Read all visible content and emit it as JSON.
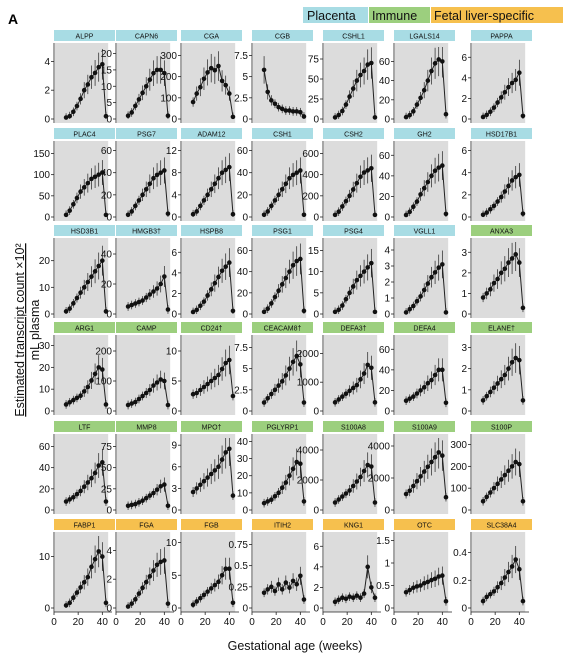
{
  "panel_label": "A",
  "legend": [
    {
      "label": "Placenta",
      "color": "#a8dce4"
    },
    {
      "label": "Immune",
      "color": "#9ccf7e"
    },
    {
      "label": "Fetal liver-specific",
      "color": "#f6c04e"
    }
  ],
  "ylabel_line1": "Estimated transcript count ×10²",
  "ylabel_line2": "mL plasma",
  "xlabel": "Gestational age (weeks)",
  "x_ticks": [
    "0",
    "20",
    "40"
  ],
  "chart_data": {
    "type": "line",
    "title": "",
    "xlabel": "Gestational age (weeks)",
    "ylabel": "Estimated transcript count ×10² / mL plasma",
    "x_weeks": [
      10,
      13,
      16,
      19,
      22,
      25,
      28,
      31,
      34,
      37,
      40,
      43
    ],
    "x_range": [
      0,
      48
    ],
    "shaded_region_weeks": [
      0,
      44
    ],
    "gene_groups": {
      "Placenta": "#a8dce4",
      "Immune": "#9ccf7e",
      "Fetal liver-specific": "#f6c04e"
    },
    "panels": [
      {
        "gene": "ALPP",
        "group": "Placenta",
        "yticks": [
          0,
          2,
          4
        ],
        "ymax": 5,
        "values": [
          0.1,
          0.2,
          0.5,
          0.9,
          1.4,
          2.0,
          2.4,
          2.9,
          3.2,
          3.6,
          3.8,
          0.2
        ]
      },
      {
        "gene": "CAPN6",
        "group": "Placenta",
        "yticks": [
          0,
          5,
          10,
          15,
          20
        ],
        "ymax": 22,
        "values": [
          1,
          2,
          4,
          6,
          8,
          10,
          12,
          14,
          15,
          15,
          14,
          1
        ]
      },
      {
        "gene": "CGA",
        "group": "Placenta",
        "yticks": [
          0,
          100,
          200,
          300
        ],
        "ymax": 340,
        "values": [
          80,
          120,
          150,
          190,
          220,
          240,
          230,
          250,
          180,
          160,
          120,
          10
        ]
      },
      {
        "gene": "CGB",
        "group": "Placenta",
        "yticks": [
          0,
          2.5,
          5,
          7.5
        ],
        "ymax": 8.5,
        "values": [
          5.8,
          3.2,
          2.2,
          1.8,
          1.4,
          1.2,
          1.0,
          1.0,
          0.9,
          0.9,
          0.8,
          0.3
        ]
      },
      {
        "gene": "CSHL1",
        "group": "Placenta",
        "yticks": [
          0,
          25,
          50,
          75
        ],
        "ymax": 90,
        "values": [
          2,
          5,
          10,
          18,
          28,
          38,
          48,
          55,
          60,
          68,
          70,
          2
        ]
      },
      {
        "gene": "LGALS14",
        "group": "Placenta",
        "yticks": [
          0,
          20,
          40,
          60
        ],
        "ymax": 75,
        "values": [
          2,
          4,
          8,
          15,
          22,
          30,
          40,
          50,
          58,
          62,
          60,
          5
        ]
      },
      {
        "gene": "PAPPA",
        "group": "Placenta",
        "yticks": [
          0,
          2,
          4,
          6
        ],
        "ymax": 7,
        "values": [
          0.2,
          0.4,
          0.7,
          1.1,
          1.6,
          2.1,
          2.6,
          3.1,
          3.5,
          3.8,
          4.5,
          0.3
        ]
      },
      {
        "gene": "PLAC4",
        "group": "Placenta",
        "yticks": [
          0,
          50,
          100,
          150
        ],
        "ymax": 170,
        "values": [
          5,
          15,
          30,
          45,
          60,
          70,
          80,
          90,
          95,
          100,
          105,
          5
        ]
      },
      {
        "gene": "PSG7",
        "group": "Placenta",
        "yticks": [
          0,
          20,
          40,
          60
        ],
        "ymax": 65,
        "values": [
          2,
          5,
          10,
          15,
          20,
          25,
          30,
          35,
          38,
          40,
          42,
          3
        ]
      },
      {
        "gene": "ADAM12",
        "group": "Placenta",
        "yticks": [
          0,
          4,
          8,
          12
        ],
        "ymax": 13,
        "values": [
          0.5,
          1,
          2,
          3,
          4,
          5,
          6,
          7,
          8,
          8.5,
          9,
          0.5
        ]
      },
      {
        "gene": "CSH1",
        "group": "Placenta",
        "yticks": [
          0,
          20,
          40,
          60
        ],
        "ymax": 65,
        "values": [
          2,
          5,
          10,
          15,
          20,
          25,
          30,
          35,
          38,
          40,
          42,
          2
        ]
      },
      {
        "gene": "CSH2",
        "group": "Placenta",
        "yticks": [
          0,
          200,
          400,
          600
        ],
        "ymax": 680,
        "values": [
          20,
          50,
          100,
          150,
          200,
          260,
          320,
          380,
          420,
          440,
          460,
          20
        ]
      },
      {
        "gene": "GH2",
        "group": "Placenta",
        "yticks": [
          0,
          20,
          40,
          60
        ],
        "ymax": 70,
        "values": [
          2,
          5,
          10,
          15,
          22,
          28,
          34,
          40,
          45,
          48,
          50,
          3
        ]
      },
      {
        "gene": "HSD17B1",
        "group": "Placenta",
        "yticks": [
          0,
          2,
          4,
          6
        ],
        "ymax": 6.5,
        "values": [
          0.2,
          0.4,
          0.7,
          1.0,
          1.4,
          1.8,
          2.3,
          2.8,
          3.3,
          3.6,
          3.8,
          0.3
        ]
      },
      {
        "gene": "HSD3B1",
        "group": "Placenta",
        "yticks": [
          0,
          10,
          20
        ],
        "ymax": 27,
        "values": [
          1,
          2,
          4,
          6,
          8,
          10,
          12,
          14,
          16,
          18,
          20,
          1
        ]
      },
      {
        "gene": "HMGB3†",
        "group": "Placenta",
        "yticks": [
          0,
          20,
          40
        ],
        "ymax": 48,
        "values": [
          5,
          6,
          7,
          8,
          9,
          11,
          13,
          15,
          17,
          20,
          25,
          3
        ]
      },
      {
        "gene": "HSPB8",
        "group": "Placenta",
        "yticks": [
          0,
          2,
          4,
          6
        ],
        "ymax": 7,
        "values": [
          0.2,
          0.4,
          0.8,
          1.2,
          1.8,
          2.4,
          3.0,
          3.6,
          4.2,
          4.6,
          5.0,
          0.3
        ]
      },
      {
        "gene": "PSG1",
        "group": "Placenta",
        "yticks": [
          0,
          20,
          40,
          60
        ],
        "ymax": 68,
        "values": [
          2,
          5,
          10,
          16,
          22,
          28,
          34,
          40,
          46,
          50,
          52,
          3
        ]
      },
      {
        "gene": "PSG4",
        "group": "Placenta",
        "yticks": [
          0,
          5,
          10,
          15
        ],
        "ymax": 17,
        "values": [
          0.5,
          1,
          2,
          3.5,
          5,
          6.5,
          8,
          9,
          10,
          11,
          12,
          0.5
        ]
      },
      {
        "gene": "VGLL1",
        "group": "Placenta",
        "yticks": [
          0,
          1,
          2,
          3,
          4
        ],
        "ymax": 4.5,
        "values": [
          0.1,
          0.3,
          0.5,
          0.8,
          1.1,
          1.5,
          1.9,
          2.3,
          2.6,
          2.9,
          3.1,
          0.1
        ]
      },
      {
        "gene": "ANXA3",
        "group": "Immune",
        "yticks": [
          0,
          1,
          2,
          3
        ],
        "ymax": 3.5,
        "values": [
          0.8,
          1.0,
          1.2,
          1.5,
          1.7,
          2.0,
          2.2,
          2.5,
          2.7,
          2.9,
          2.5,
          0.3
        ]
      },
      {
        "gene": "ARG1",
        "group": "Immune",
        "yticks": [
          0,
          10,
          20,
          30
        ],
        "ymax": 33,
        "values": [
          3,
          4,
          5,
          6,
          7,
          9,
          11,
          14,
          17,
          20,
          19,
          3
        ]
      },
      {
        "gene": "CAMP",
        "group": "Immune",
        "yticks": [
          0,
          100,
          200
        ],
        "ymax": 240,
        "values": [
          20,
          25,
          30,
          40,
          50,
          60,
          70,
          85,
          95,
          105,
          100,
          20
        ]
      },
      {
        "gene": "CD24†",
        "group": "Immune",
        "yticks": [
          0,
          5,
          10
        ],
        "ymax": 12,
        "values": [
          2.8,
          3.0,
          3.5,
          4.0,
          4.5,
          5.0,
          5.5,
          6.0,
          7.0,
          8.0,
          8.5,
          2.5
        ]
      },
      {
        "gene": "CEACAM8†",
        "group": "Immune",
        "yticks": [
          0,
          2.5,
          5,
          7.5
        ],
        "ymax": 8.5,
        "values": [
          1.0,
          1.5,
          2.0,
          2.5,
          3.0,
          3.5,
          4.2,
          5.0,
          5.8,
          6.5,
          5.5,
          1.0
        ]
      },
      {
        "gene": "DEFA3†",
        "group": "Immune",
        "yticks": [
          0,
          1000,
          2000
        ],
        "ymax": 2500,
        "values": [
          300,
          400,
          500,
          600,
          700,
          800,
          900,
          1100,
          1300,
          1600,
          1500,
          300
        ]
      },
      {
        "gene": "DEFA4",
        "group": "Immune",
        "yticks": [
          0,
          20,
          40,
          60
        ],
        "ymax": 70,
        "values": [
          10,
          12,
          14,
          17,
          20,
          23,
          27,
          30,
          35,
          40,
          40,
          8
        ]
      },
      {
        "gene": "ELANE†",
        "group": "Immune",
        "yticks": [
          0,
          1,
          2,
          3
        ],
        "ymax": 3.4,
        "values": [
          0.5,
          0.7,
          0.9,
          1.1,
          1.3,
          1.5,
          1.7,
          2.0,
          2.3,
          2.5,
          2.4,
          0.5
        ]
      },
      {
        "gene": "LTF",
        "group": "Immune",
        "yticks": [
          0,
          20,
          40,
          60
        ],
        "ymax": 68,
        "values": [
          8,
          10,
          12,
          15,
          18,
          22,
          26,
          30,
          35,
          42,
          45,
          8
        ]
      },
      {
        "gene": "MMP8",
        "group": "Immune",
        "yticks": [
          0,
          25,
          50,
          75
        ],
        "ymax": 85,
        "values": [
          5,
          6,
          7,
          9,
          11,
          14,
          17,
          20,
          24,
          28,
          30,
          5
        ]
      },
      {
        "gene": "MPO†",
        "group": "Immune",
        "yticks": [
          0,
          3,
          6,
          9
        ],
        "ymax": 10,
        "values": [
          2.5,
          3.0,
          3.5,
          4.0,
          4.5,
          5.0,
          5.5,
          6.0,
          7.0,
          8.0,
          8.5,
          2.0
        ]
      },
      {
        "gene": "PGLYRP1",
        "group": "Immune",
        "yticks": [
          0,
          10,
          20,
          30,
          40
        ],
        "ymax": 42,
        "values": [
          4,
          5,
          6,
          8,
          10,
          13,
          16,
          20,
          24,
          28,
          27,
          5
        ]
      },
      {
        "gene": "S100A8",
        "group": "Immune",
        "yticks": [
          0,
          2000,
          4000
        ],
        "ymax": 4800,
        "values": [
          500,
          700,
          900,
          1100,
          1300,
          1600,
          1900,
          2200,
          2600,
          3000,
          2900,
          500
        ]
      },
      {
        "gene": "S100A9",
        "group": "Immune",
        "yticks": [
          0,
          2000,
          4000
        ],
        "ymax": 4500,
        "values": [
          1000,
          1200,
          1500,
          1800,
          2100,
          2400,
          2700,
          3000,
          3300,
          3600,
          3400,
          800
        ]
      },
      {
        "gene": "S100P",
        "group": "Immune",
        "yticks": [
          0,
          100,
          200,
          300
        ],
        "ymax": 330,
        "values": [
          40,
          60,
          80,
          100,
          120,
          140,
          160,
          180,
          200,
          220,
          210,
          40
        ]
      },
      {
        "gene": "FABP1",
        "group": "Fetal liver-specific",
        "yticks": [
          0,
          10
        ],
        "ymax": 14,
        "values": [
          0.5,
          1,
          2,
          3,
          4,
          5,
          6,
          8,
          9.5,
          11,
          10,
          1
        ]
      },
      {
        "gene": "FGA",
        "group": "Fetal liver-specific",
        "yticks": [
          0,
          2,
          4
        ],
        "ymax": 5,
        "values": [
          0.1,
          0.3,
          0.6,
          1.0,
          1.4,
          1.8,
          2.2,
          2.6,
          3.0,
          3.2,
          3.3,
          0.3
        ]
      },
      {
        "gene": "FGB",
        "group": "Fetal liver-specific",
        "yticks": [
          0,
          5,
          10
        ],
        "ymax": 11,
        "values": [
          0.5,
          1,
          1.5,
          2,
          2.5,
          3,
          3.5,
          4,
          5,
          6,
          6,
          0.8
        ]
      },
      {
        "gene": "ITIH2",
        "group": "Fetal liver-specific",
        "yticks": [
          0,
          0.25,
          0.5,
          0.75
        ],
        "ymax": 0.85,
        "values": [
          0.18,
          0.22,
          0.25,
          0.2,
          0.28,
          0.22,
          0.3,
          0.24,
          0.32,
          0.28,
          0.38,
          0.1
        ]
      },
      {
        "gene": "KNG1",
        "group": "Fetal liver-specific",
        "yticks": [
          0,
          2,
          4,
          6
        ],
        "ymax": 7,
        "values": [
          0.6,
          0.8,
          1.0,
          0.9,
          1.1,
          1.0,
          1.2,
          1.0,
          1.4,
          4.0,
          2.0,
          1.0
        ]
      },
      {
        "gene": "OTC",
        "group": "Fetal liver-specific",
        "yticks": [
          0,
          0.5,
          1,
          1.5
        ],
        "ymax": 1.6,
        "values": [
          0.35,
          0.4,
          0.45,
          0.48,
          0.5,
          0.55,
          0.58,
          0.62,
          0.65,
          0.7,
          0.72,
          0.15
        ]
      },
      {
        "gene": "SLC38A4",
        "group": "Fetal liver-specific",
        "yticks": [
          0,
          0.2,
          0.4
        ],
        "ymax": 0.52,
        "values": [
          0.05,
          0.08,
          0.1,
          0.12,
          0.15,
          0.18,
          0.22,
          0.26,
          0.3,
          0.35,
          0.28,
          0.05
        ]
      }
    ]
  }
}
